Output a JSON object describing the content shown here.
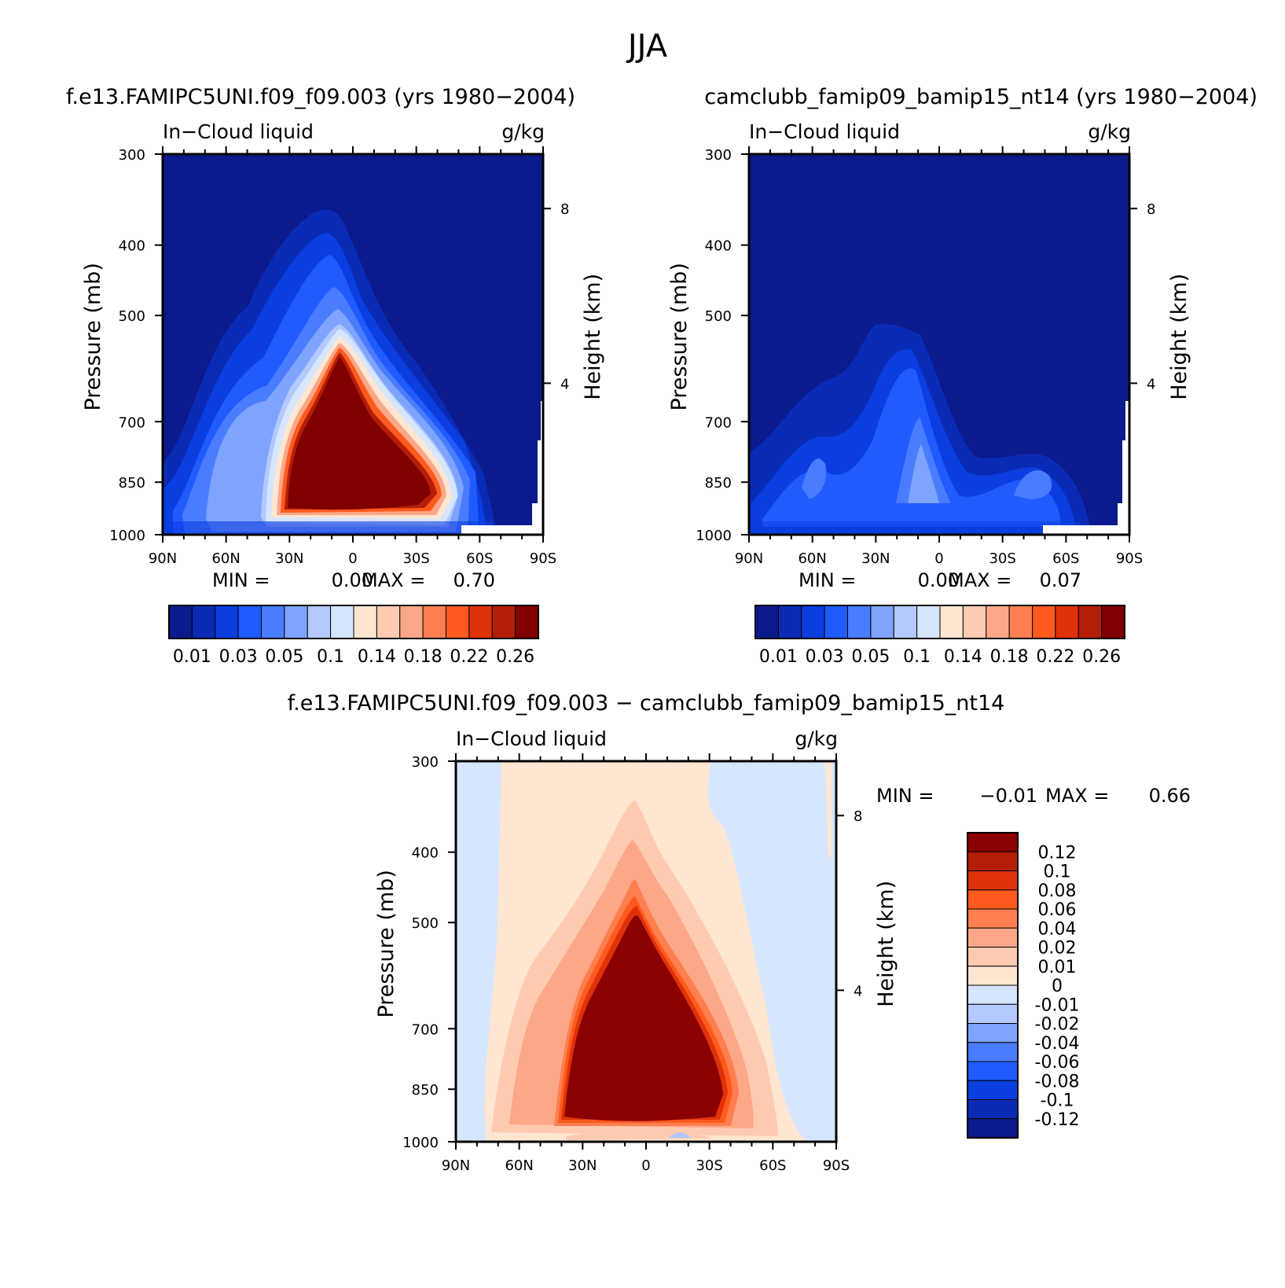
{
  "figure": {
    "title": "JJA"
  },
  "colorbar_shared": {
    "levels": [
      "0.01",
      "0.02",
      "0.03",
      "0.04",
      "0.05",
      "0.07",
      "0.1",
      "0.12",
      "0.14",
      "0.16",
      "0.18",
      "0.2",
      "0.22",
      "0.24",
      "0.26"
    ],
    "shown_labels": [
      "0.01",
      "0.03",
      "0.05",
      "0.1",
      "0.14",
      "0.18",
      "0.22",
      "0.26"
    ],
    "colors": [
      "#0b1a8c",
      "#0a2bb5",
      "#0a3ee0",
      "#1f5bff",
      "#4a7cff",
      "#7ea4ff",
      "#b3c9ff",
      "#d6e6ff",
      "#ffe6d2",
      "#ffcbb0",
      "#fca888",
      "#ff7f50",
      "#ff5a1e",
      "#e0320a",
      "#b31e08",
      "#800000"
    ]
  },
  "colorbar_diff": {
    "labels": [
      "0.12",
      "0.1",
      "0.08",
      "0.06",
      "0.04",
      "0.02",
      "0.01",
      "0",
      "-0.01",
      "-0.02",
      "-0.04",
      "-0.06",
      "-0.08",
      "-0.1",
      "-0.12"
    ],
    "colors_top_to_bottom": [
      "#8b0000",
      "#b31e08",
      "#e0320a",
      "#ff5a1e",
      "#ff7f50",
      "#fca888",
      "#ffcbb0",
      "#ffe6d2",
      "#d6e6ff",
      "#b3c9ff",
      "#7ea4ff",
      "#4a7cff",
      "#1f5bff",
      "#0a3ee0",
      "#0a2bb5",
      "#0b1a8c"
    ]
  },
  "chart_data": [
    {
      "type": "heatmap",
      "title": "f.e13.FAMIPC5UNI.f09_f09.003 (yrs 1980−2004)",
      "left_label": "In−Cloud liquid",
      "right_label": "g/kg",
      "xlabel": "",
      "ylabel": "Pressure (mb)",
      "y2label": "Height (km)",
      "x_ticks": [
        "90N",
        "60N",
        "30N",
        "0",
        "30S",
        "60S",
        "90S"
      ],
      "y_ticks": [
        "300",
        "400",
        "500",
        "700",
        "850",
        "1000"
      ],
      "y2_ticks": [
        "8",
        "4"
      ],
      "stats": {
        "min_label": "MIN =",
        "min": "0.00",
        "max_label": "MAX =",
        "max": "0.70"
      },
      "description": "Zonal-mean in-cloud liquid, peak >0.26 g/kg between ~35N and ~45S below 550 mb"
    },
    {
      "type": "heatmap",
      "title": "camclubb_famip09_bamip15_nt14 (yrs 1980−2004)",
      "left_label": "In−Cloud liquid",
      "right_label": "g/kg",
      "xlabel": "",
      "ylabel": "Pressure (mb)",
      "y2label": "Height (km)",
      "x_ticks": [
        "90N",
        "60N",
        "30N",
        "0",
        "30S",
        "60S",
        "90S"
      ],
      "y_ticks": [
        "300",
        "400",
        "500",
        "700",
        "850",
        "1000"
      ],
      "y2_ticks": [
        "8",
        "4"
      ],
      "stats": {
        "min_label": "MIN =",
        "min": "0.00",
        "max_label": "MAX =",
        "max": "0.07"
      },
      "description": "Low values, maxima ~0.07 g/kg near equator and 55S in lower troposphere"
    },
    {
      "type": "heatmap",
      "title": "f.e13.FAMIPC5UNI.f09_f09.003 − camclubb_famip09_bamip15_nt14",
      "left_label": "In−Cloud liquid",
      "right_label": "g/kg",
      "xlabel": "",
      "ylabel": "Pressure (mb)",
      "y2label": "Height (km)",
      "x_ticks": [
        "90N",
        "60N",
        "30N",
        "0",
        "30S",
        "60S",
        "90S"
      ],
      "y_ticks": [
        "300",
        "400",
        "500",
        "700",
        "850",
        "1000"
      ],
      "y2_ticks": [
        "8",
        "4"
      ],
      "stats": {
        "min_label": "MIN =",
        "min": "−0.01",
        "max_label": "MAX =",
        "max": "0.66"
      },
      "description": "Difference field, large positive core >0.12 g/kg in tropics/subtropics"
    }
  ]
}
